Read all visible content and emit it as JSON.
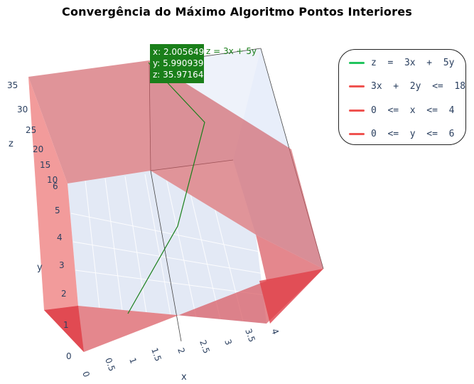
{
  "title": "Convergência do Máximo Algoritmo Pontos Interiores",
  "legend": {
    "items": [
      {
        "label": "z  =  3x  +  5y",
        "color": "#22c55e"
      },
      {
        "label": "3x  +  2y  <=  18",
        "color": "#ef5350"
      },
      {
        "label": "0  <=  x  <=  4",
        "color": "#ef5350"
      },
      {
        "label": "0  <=  y  <=  6",
        "color": "#ef5350"
      }
    ]
  },
  "hover": {
    "x_text": "x: 2.005649",
    "y_text": "y: 5.990939",
    "z_text": "z: 35.97164",
    "trace_name": "z = 3x + 5y"
  },
  "axes": {
    "x": {
      "title": "x",
      "ticks": [
        "0",
        "0.5",
        "1",
        "1.5",
        "2",
        "2.5",
        "3",
        "3.5",
        "4"
      ]
    },
    "y": {
      "title": "y",
      "ticks": [
        "0",
        "1",
        "2",
        "3",
        "4",
        "5",
        "6"
      ]
    },
    "z": {
      "title": "z",
      "ticks": [
        "10",
        "15",
        "20",
        "25",
        "30",
        "35"
      ]
    }
  },
  "chart_data": {
    "type": "scatter3d",
    "title": "Convergência do Máximo Algoritmo Pontos Interiores",
    "xlabel": "x",
    "ylabel": "y",
    "zlabel": "z",
    "xlim": [
      0,
      4
    ],
    "ylim": [
      0,
      6
    ],
    "zlim": [
      0,
      36
    ],
    "series": [
      {
        "name": "z = 3x + 5y",
        "mode": "lines",
        "color": "#1a7f1a",
        "points": [
          {
            "x": 1.0,
            "y": 0.8,
            "z": 7.0
          },
          {
            "x": 1.6,
            "y": 2.6,
            "z": 17.8
          },
          {
            "x": 1.95,
            "y": 4.6,
            "z": 28.85
          },
          {
            "x": 2.005649,
            "y": 5.990939,
            "z": 35.97164
          }
        ]
      },
      {
        "name": "3x + 2y <= 18",
        "type": "constraint-surface",
        "color": "#ef5350"
      },
      {
        "name": "0 <= x <= 4",
        "type": "constraint-surface",
        "color": "#ef5350"
      },
      {
        "name": "0 <= y <= 6",
        "type": "constraint-surface",
        "color": "#ef5350"
      }
    ],
    "highlighted_point": {
      "x": 2.005649,
      "y": 5.990939,
      "z": 35.97164
    }
  }
}
